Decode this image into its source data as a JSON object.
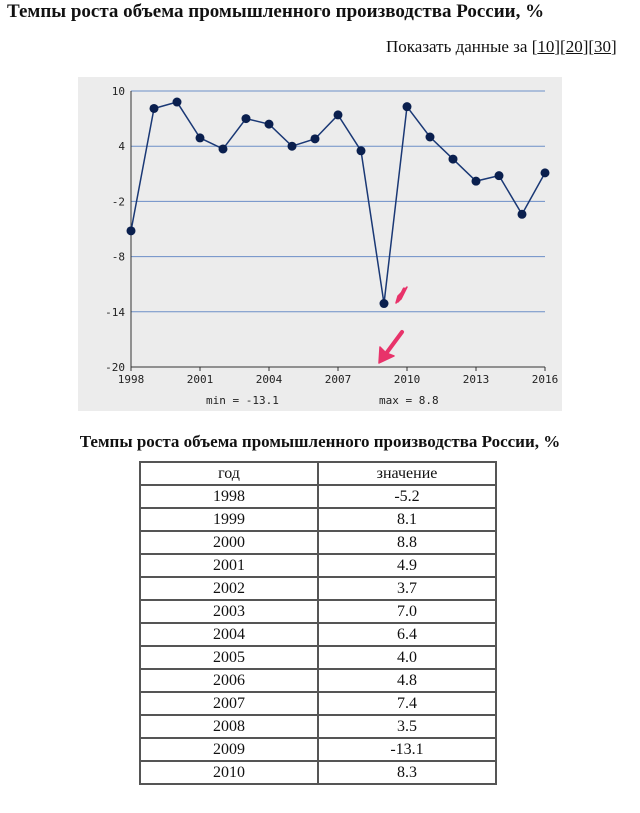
{
  "page": {
    "title": "Темпы роста объема промышленного производства России, %",
    "show_data_label": "Показать данные за",
    "period_links": [
      "10",
      "20",
      "30"
    ]
  },
  "chart_data": {
    "type": "line",
    "x": [
      1998,
      1999,
      2000,
      2001,
      2002,
      2003,
      2004,
      2005,
      2006,
      2007,
      2008,
      2009,
      2010,
      2011,
      2012,
      2013,
      2014,
      2015,
      2016
    ],
    "series": [
      {
        "values": [
          -5.2,
          8.1,
          8.8,
          4.9,
          3.7,
          7.0,
          6.4,
          4.0,
          4.8,
          7.4,
          3.5,
          -13.1,
          8.3,
          5.0,
          2.6,
          0.2,
          0.8,
          -3.4,
          1.1
        ]
      }
    ],
    "xlim": [
      1998,
      2016
    ],
    "ylim": [
      -20,
      10
    ],
    "yticks": [
      10,
      4,
      -2,
      -8,
      -14,
      -20
    ],
    "xticks": [
      1998,
      2001,
      2004,
      2007,
      2010,
      2013,
      2016
    ],
    "grid": "horizontal",
    "min_label": "min = -13.1",
    "max_label": "max = 8.8",
    "line_color": "#1a3875",
    "marker_color": "#0a1f4e",
    "grid_color": "#6c8fc7",
    "arrow_color": "#e8336a"
  },
  "table": {
    "title": "Темпы роста объема промышленного производства России, %",
    "headers": [
      "год",
      "значение"
    ],
    "rows": [
      [
        "1998",
        "-5.2"
      ],
      [
        "1999",
        "8.1"
      ],
      [
        "2000",
        "8.8"
      ],
      [
        "2001",
        "4.9"
      ],
      [
        "2002",
        "3.7"
      ],
      [
        "2003",
        "7.0"
      ],
      [
        "2004",
        "6.4"
      ],
      [
        "2005",
        "4.0"
      ],
      [
        "2006",
        "4.8"
      ],
      [
        "2007",
        "7.4"
      ],
      [
        "2008",
        "3.5"
      ],
      [
        "2009",
        "-13.1"
      ],
      [
        "2010",
        "8.3"
      ]
    ]
  }
}
